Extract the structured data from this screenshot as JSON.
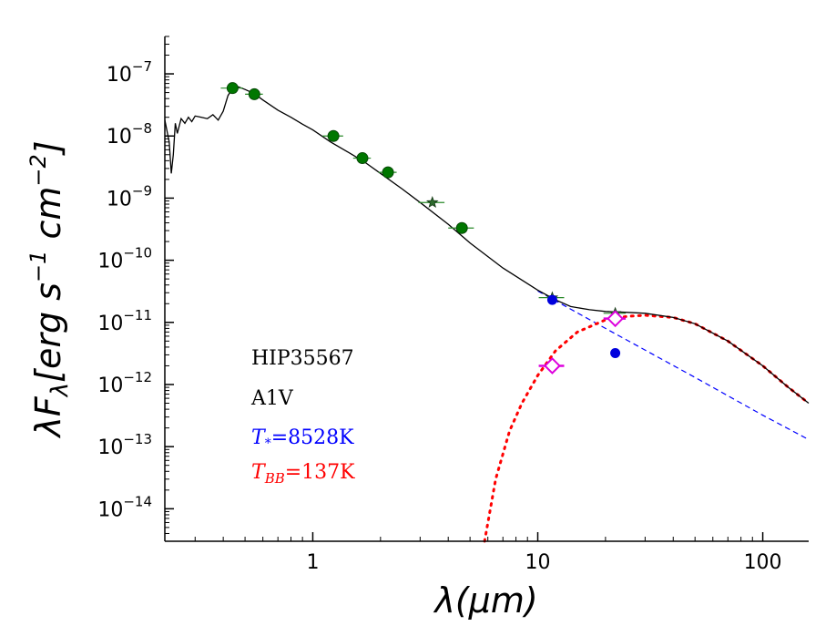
{
  "chart_data": {
    "type": "scatter",
    "title": "",
    "xlabel": "λ(μm)",
    "ylabel": "λF_λ [erg s^-1 cm^-2]",
    "x_scale": "log",
    "y_scale": "log",
    "xlim": [
      0.22,
      160
    ],
    "ylim": [
      3e-15,
      4e-07
    ],
    "grid": false,
    "x_ticks": [
      {
        "value": 1,
        "label": "1"
      },
      {
        "value": 10,
        "label": "10"
      },
      {
        "value": 100,
        "label": "100"
      }
    ],
    "y_ticks": [
      {
        "value": 1e-07,
        "mant": "10",
        "exp": "−7"
      },
      {
        "value": 1e-08,
        "mant": "10",
        "exp": "−8"
      },
      {
        "value": 1e-09,
        "mant": "10",
        "exp": "−9"
      },
      {
        "value": 1e-10,
        "mant": "10",
        "exp": "−10"
      },
      {
        "value": 1e-11,
        "mant": "10",
        "exp": "−11"
      },
      {
        "value": 1e-12,
        "mant": "10",
        "exp": "−12"
      },
      {
        "value": 1e-13,
        "mant": "10",
        "exp": "−13"
      },
      {
        "value": 1e-14,
        "mant": "10",
        "exp": "−14"
      }
    ],
    "annotations": {
      "star_name": "HIP35567",
      "spectral_type": "A1V",
      "tstar_symbol": "T",
      "tstar_sub": "*",
      "tstar_value": "=8528K",
      "tbb_symbol": "T",
      "tbb_sub": "BB",
      "tbb_value": "=137K",
      "tstar_color": "#0000ff",
      "tbb_color": "#ff0000"
    },
    "series": [
      {
        "kind": "total_model",
        "color": "#000000",
        "x": [
          0.22,
          0.23,
          0.235,
          0.24,
          0.245,
          0.25,
          0.26,
          0.27,
          0.28,
          0.29,
          0.3,
          0.32,
          0.34,
          0.36,
          0.38,
          0.4,
          0.42,
          0.45,
          0.5,
          0.55,
          0.6,
          0.7,
          0.8,
          0.9,
          1.0,
          1.2,
          1.5,
          1.7,
          2.0,
          2.5,
          3.0,
          4.0,
          5.0,
          7.0,
          10.0,
          12.0,
          14.0,
          17.0,
          20.0,
          25.0,
          30.0,
          40.0,
          50.0,
          70.0,
          100.0,
          130.0,
          160.0
        ],
        "y": [
          1.8e-08,
          8e-09,
          2.5e-09,
          5e-09,
          1.6e-08,
          1.1e-08,
          1.9e-08,
          1.6e-08,
          2e-08,
          1.7e-08,
          2.1e-08,
          2e-08,
          1.9e-08,
          2.2e-08,
          1.8e-08,
          2.5e-08,
          4.5e-08,
          6.5e-08,
          5.6e-08,
          4.8e-08,
          3.8e-08,
          2.6e-08,
          2e-08,
          1.55e-08,
          1.25e-08,
          8e-09,
          5e-09,
          3.8e-09,
          2.5e-09,
          1.4e-09,
          8.5e-10,
          3.8e-10,
          1.9e-10,
          7.5e-11,
          3.3e-11,
          2.3e-11,
          1.8e-11,
          1.6e-11,
          1.5e-11,
          1.45e-11,
          1.4e-11,
          1.2e-11,
          9.5e-12,
          5e-12,
          2e-12,
          9e-13,
          5e-13
        ]
      },
      {
        "kind": "stellar_photosphere",
        "color": "#0000ff",
        "x": [
          10.0,
          20.0,
          50.0,
          100.0,
          160.0
        ],
        "y": [
          3.2e-11,
          8e-12,
          1.3e-12,
          3.2e-13,
          1.3e-13
        ]
      },
      {
        "kind": "blackbody",
        "color": "#ff0000",
        "x": [
          5.8,
          6.5,
          7.5,
          8.5,
          10.0,
          12.0,
          15.0,
          20.0,
          25.0,
          30.0,
          40.0,
          50.0,
          70.0,
          100.0,
          130.0,
          160.0
        ],
        "y": [
          3e-15,
          3e-14,
          1.8e-13,
          5e-13,
          1.4e-12,
          3.5e-12,
          7e-12,
          1.1e-11,
          1.25e-11,
          1.3e-11,
          1.2e-11,
          9.5e-12,
          5e-12,
          2e-12,
          9e-13,
          5e-13
        ]
      },
      {
        "kind": "observed_photometry",
        "color": "#007700",
        "points": [
          {
            "x": 0.44,
            "y": 5.9e-08,
            "xerr": 0.05
          },
          {
            "x": 0.55,
            "y": 4.7e-08,
            "xerr": 0.05
          },
          {
            "x": 1.235,
            "y": 1e-08,
            "xerr": 0.13
          },
          {
            "x": 1.662,
            "y": 4.4e-09,
            "xerr": 0.15
          },
          {
            "x": 2.159,
            "y": 2.6e-09,
            "xerr": 0.2
          },
          {
            "x": 4.6,
            "y": 3.3e-10,
            "xerr": 0.6
          }
        ]
      },
      {
        "kind": "observed_stars",
        "color": "#2e6b2e",
        "points": [
          {
            "x": 3.4,
            "y": 8.5e-10,
            "xerr": 0.45
          },
          {
            "x": 11.6,
            "y": 2.5e-11,
            "xerr": 1.5
          },
          {
            "x": 22.1,
            "y": 1.4e-11,
            "xerr": 2.5
          }
        ]
      },
      {
        "kind": "photosphere_points",
        "color": "#0000dd",
        "points": [
          {
            "x": 11.6,
            "y": 2.3e-11
          },
          {
            "x": 22.1,
            "y": 3.2e-12
          }
        ]
      },
      {
        "kind": "excess",
        "color": "#dd00dd",
        "points": [
          {
            "x": 11.6,
            "y": 2e-12,
            "xerr": 1.5
          },
          {
            "x": 22.1,
            "y": 1.15e-11,
            "xerr": 2.5
          }
        ]
      }
    ]
  }
}
